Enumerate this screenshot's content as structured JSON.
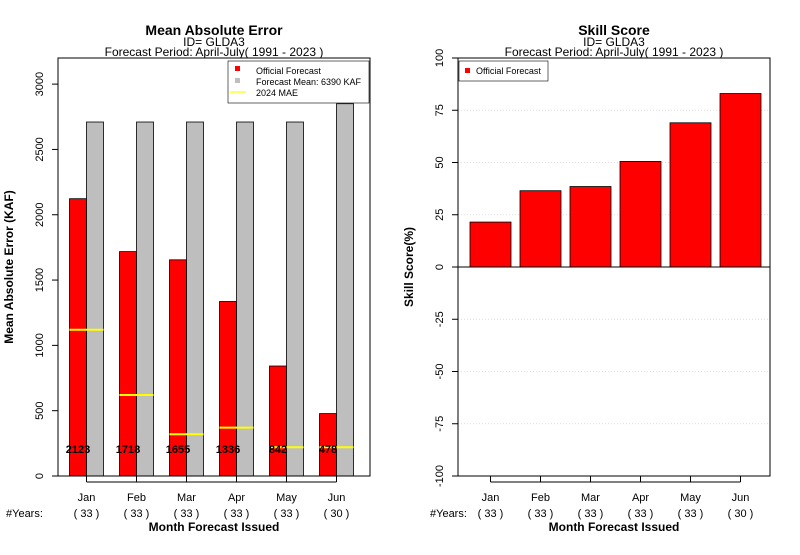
{
  "chart_data": [
    {
      "type": "bar",
      "title": "Mean Absolute Error",
      "subtitle_lines": [
        "ID= GLDA3",
        "Forecast Period: April-July( 1991 - 2023 )"
      ],
      "xlabel": "Month Forecast Issued",
      "ylabel": "Mean Absolute Error (KAF)",
      "ylim": [
        0,
        3200
      ],
      "yticks": [
        0,
        500,
        1000,
        1500,
        2000,
        2500,
        3000
      ],
      "categories": [
        "Jan",
        "Feb",
        "Mar",
        "Apr",
        "May",
        "Jun"
      ],
      "years_label": "#Years:",
      "years": [
        "( 33 )",
        "( 33 )",
        "( 33 )",
        "( 33 )",
        "( 33 )",
        "( 30 )"
      ],
      "series": [
        {
          "name": "Official Forecast",
          "color": "#ff0000",
          "values": [
            2123,
            1718,
            1655,
            1336,
            842,
            478
          ]
        },
        {
          "name": "Forecast Mean: 6390 KAF",
          "color": "#bebebe",
          "values": [
            2710,
            2710,
            2710,
            2710,
            2710,
            2850
          ]
        },
        {
          "name": "2024  MAE",
          "color": "#ffff00",
          "values": [
            1120,
            620,
            320,
            370,
            220,
            220
          ]
        }
      ],
      "data_labels": [
        "2123",
        "1718",
        "1655",
        "1336",
        "842",
        "478"
      ],
      "legend_position": "top-right",
      "grid": false
    },
    {
      "type": "bar",
      "title": "Skill Score",
      "subtitle_lines": [
        "ID= GLDA3",
        "Forecast Period: April-July( 1991 - 2023 )"
      ],
      "xlabel": "Month Forecast Issued",
      "ylabel": "Skill Score(%)",
      "ylim": [
        -100,
        100
      ],
      "yticks": [
        -100,
        -75,
        -50,
        -25,
        0,
        25,
        50,
        75,
        100
      ],
      "categories": [
        "Jan",
        "Feb",
        "Mar",
        "Apr",
        "May",
        "Jun"
      ],
      "years_label": "#Years:",
      "years": [
        "( 33 )",
        "( 33 )",
        "( 33 )",
        "( 33 )",
        "( 33 )",
        "( 30 )"
      ],
      "series": [
        {
          "name": "Official Forecast",
          "color": "#ff0000",
          "values": [
            21.5,
            36.5,
            38.5,
            50.5,
            69,
            83
          ]
        }
      ],
      "legend_position": "top-left",
      "grid": true
    }
  ]
}
